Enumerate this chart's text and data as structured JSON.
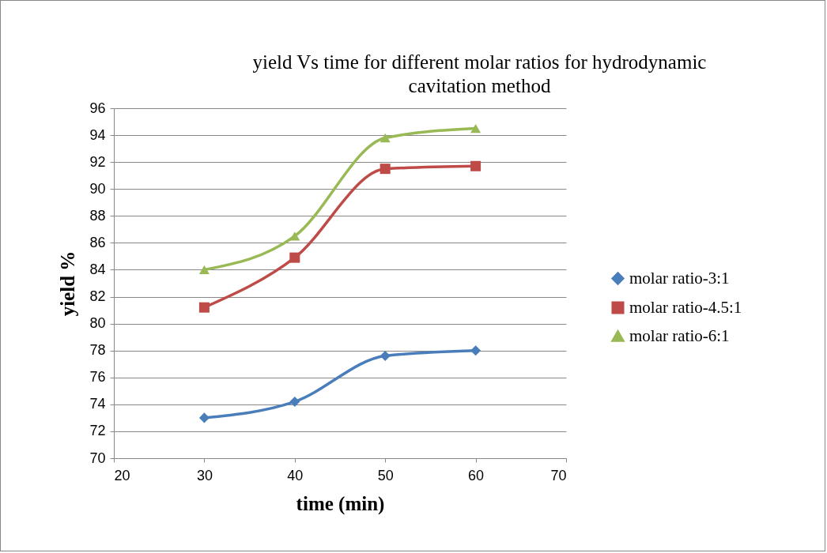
{
  "chart_data": {
    "type": "line",
    "title": "yield Vs time for different molar ratios for hydrodynamic cavitation method",
    "xlabel": "time (min)",
    "ylabel": "yield %",
    "x": [
      30,
      40,
      50,
      60
    ],
    "series": [
      {
        "name": "molar ratio-3:1",
        "color": "#4a7ebb",
        "marker": "diamond",
        "values": [
          73.0,
          74.2,
          77.6,
          78.0
        ]
      },
      {
        "name": "molar ratio-4.5:1",
        "color": "#be4b48",
        "marker": "square",
        "values": [
          81.2,
          84.9,
          91.5,
          91.7
        ]
      },
      {
        "name": "molar ratio-6:1",
        "color": "#98b954",
        "marker": "triangle",
        "values": [
          84.0,
          86.5,
          93.8,
          94.5
        ]
      }
    ],
    "xlim": [
      20,
      70
    ],
    "xticks": [
      20,
      30,
      40,
      50,
      60,
      70
    ],
    "ylim": [
      70,
      96
    ],
    "yticks": [
      70,
      72,
      74,
      76,
      78,
      80,
      82,
      84,
      86,
      88,
      90,
      92,
      94,
      96
    ],
    "grid": "y",
    "legend": "right",
    "line_style": "solid"
  }
}
